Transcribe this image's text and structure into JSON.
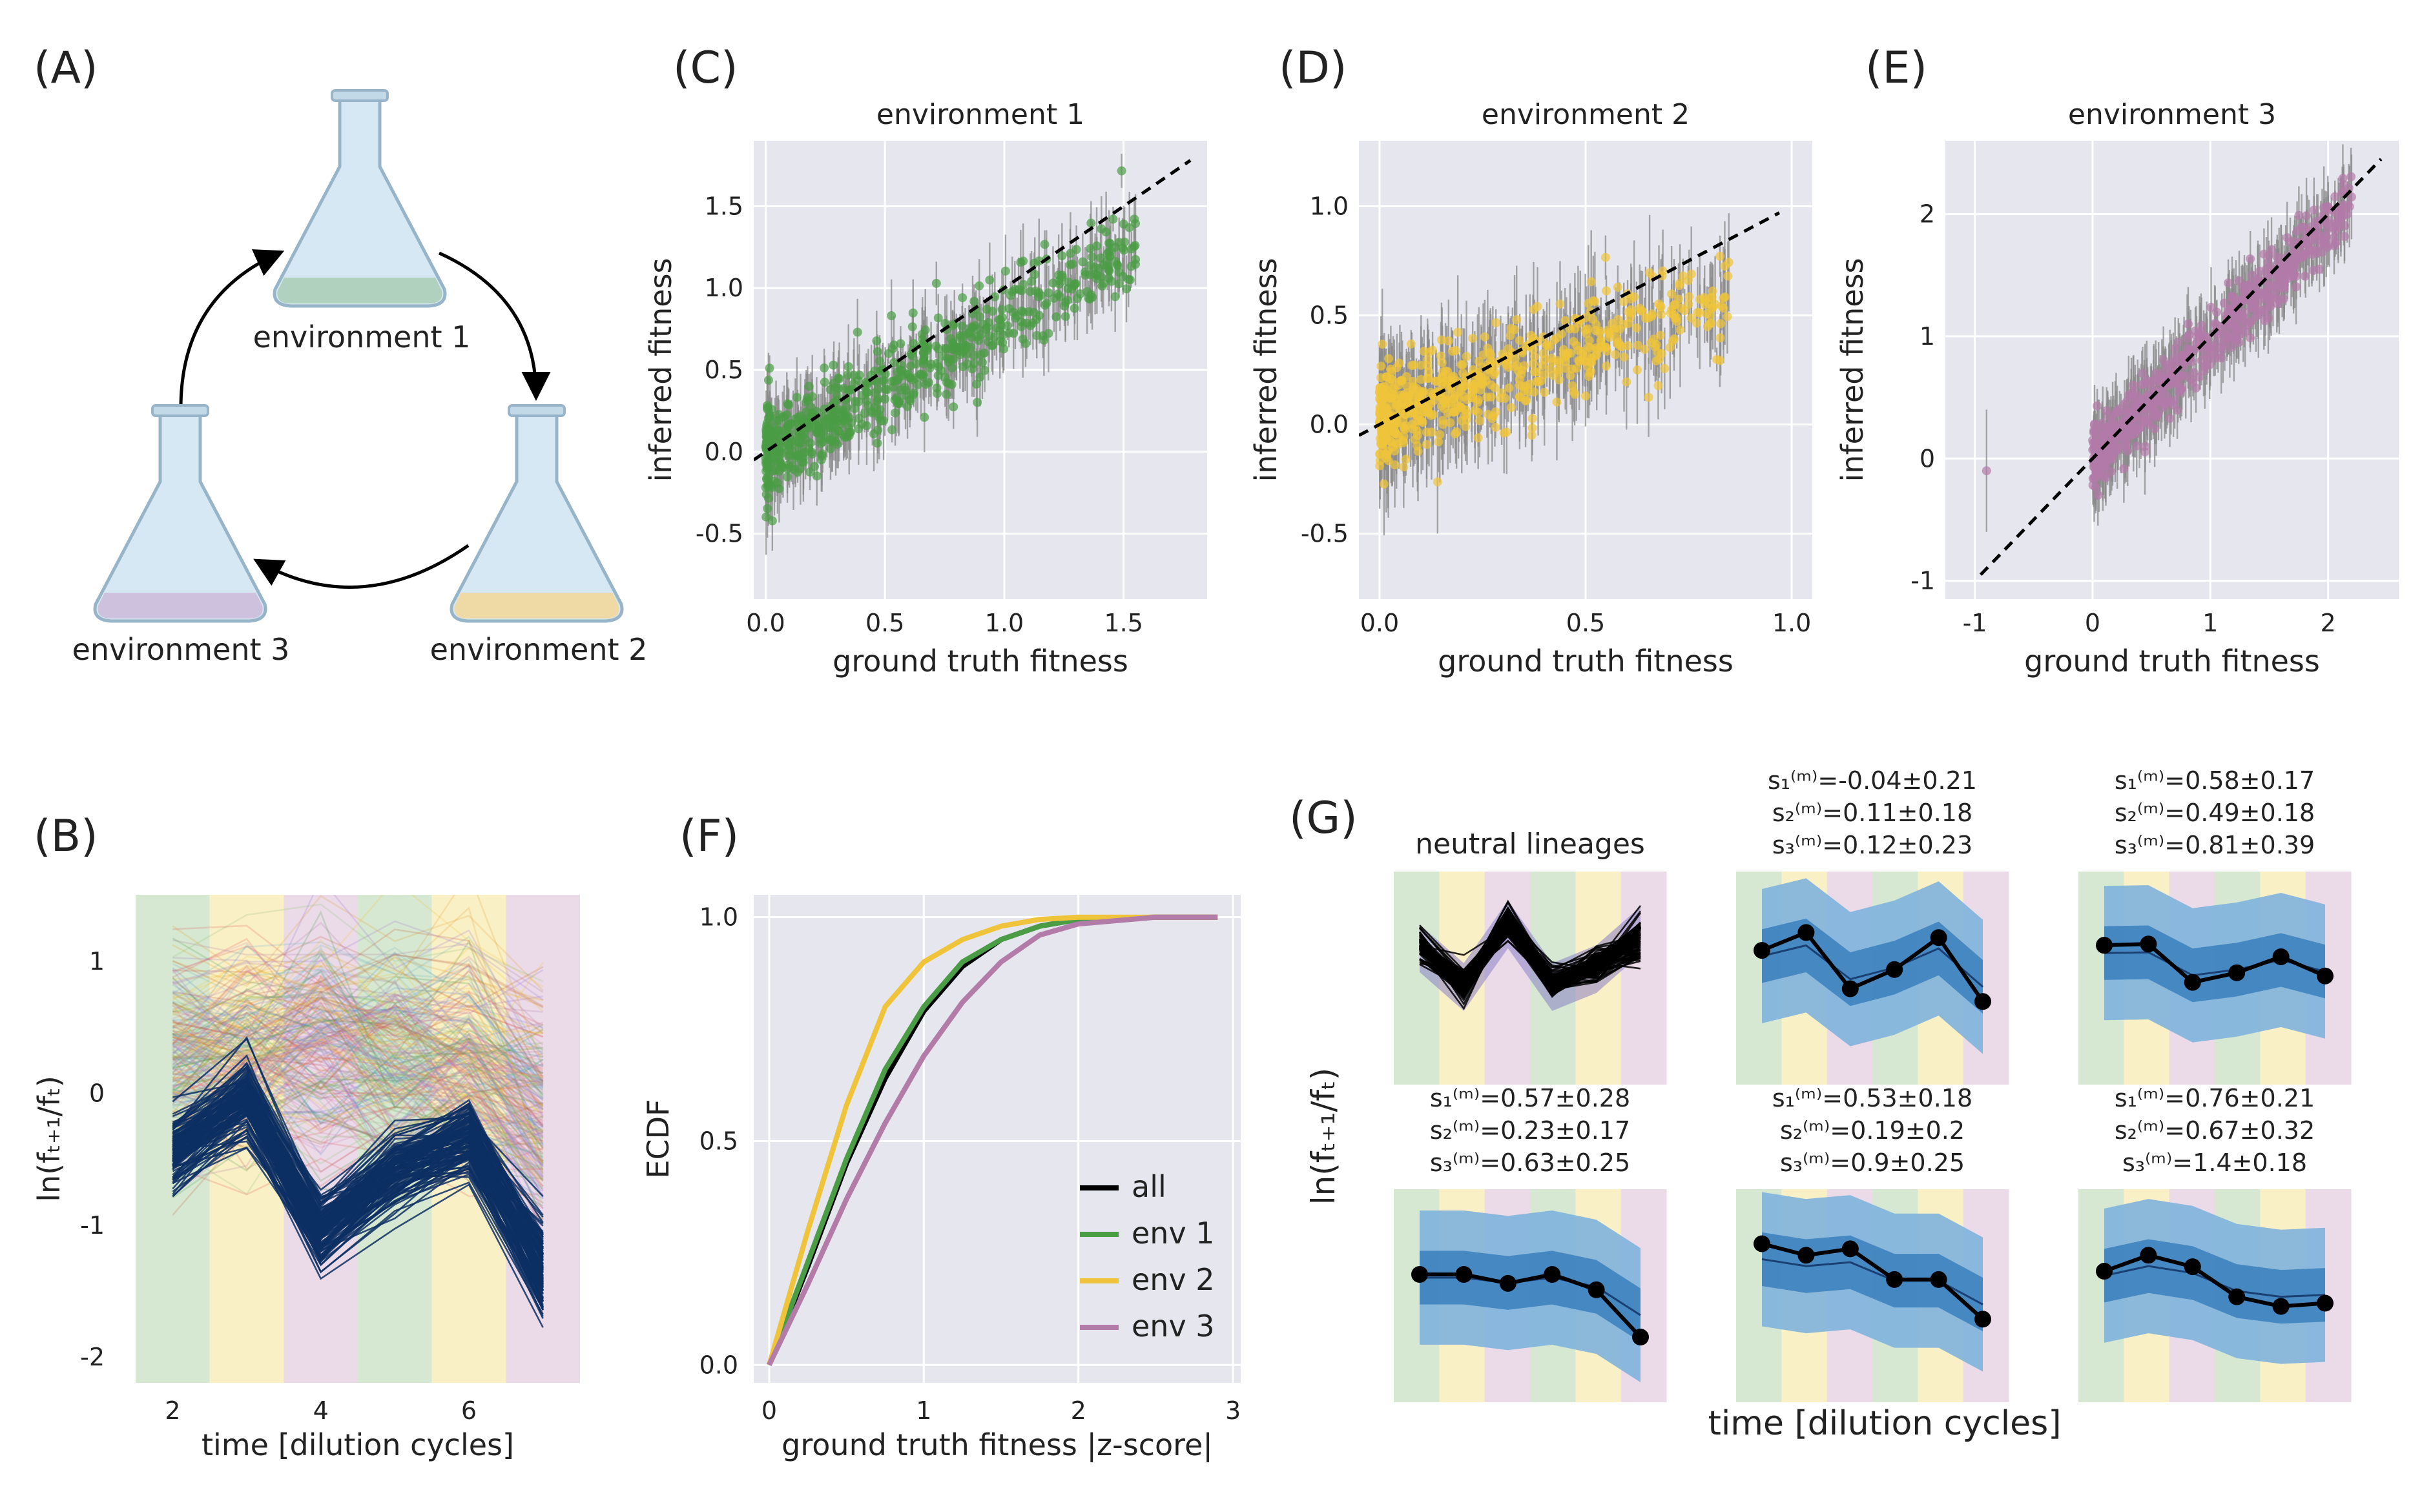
{
  "panel_labels": [
    "(A)",
    "(B)",
    "(C)",
    "(D)",
    "(E)",
    "(F)",
    "(G)"
  ],
  "colors": {
    "env1": "#4a9d45",
    "env2": "#f0c43a",
    "env3": "#b27ba8",
    "env1_bg": "#d6e8d1",
    "env2_bg": "#faf0c6",
    "env3_bg": "#ebdbe8",
    "neutral": "#0d2f63",
    "axes_bg": "#e6e6ef",
    "errorbar": "#8a8a8a",
    "band_light": "#7fb2dc",
    "band_dark": "#2f78b8",
    "all": "#000000"
  },
  "panel_a": {
    "labels": [
      "environment 1",
      "environment 2",
      "environment 3"
    ],
    "liquid_colors": [
      "#a9cdb3",
      "#f2d89c",
      "#cdbddb"
    ]
  },
  "chart_data": [
    {
      "panel": "B",
      "type": "line",
      "xlabel": "time [dilution cycles]",
      "ylabel": "ln(fₜ₊₁/fₜ)",
      "x_ticks": [
        2,
        4,
        6
      ],
      "y_ticks": [
        1,
        0,
        -1,
        -2
      ],
      "y_tick_labels": [
        "1",
        "0",
        "-1",
        "-2"
      ],
      "xlim": [
        1.5,
        7.5
      ],
      "ylim": [
        -2.2,
        1.5
      ],
      "env_bands": [
        "env1",
        "env2",
        "env3",
        "env1",
        "env2",
        "env3"
      ],
      "neutral_mean": {
        "x": [
          2,
          3,
          4,
          5,
          6,
          7
        ],
        "y": [
          -0.45,
          -0.05,
          -1.05,
          -0.6,
          -0.35,
          -1.1
        ]
      }
    },
    {
      "panel": "C",
      "type": "scatter",
      "title": "environment 1",
      "xlabel": "ground truth fitness",
      "ylabel": "inferred fitness",
      "x_ticks": [
        0.0,
        0.5,
        1.0,
        1.5
      ],
      "x_tick_labels": [
        "0.0",
        "0.5",
        "1.0",
        "1.5"
      ],
      "y_ticks": [
        1.5,
        1.0,
        0.5,
        0.0,
        -0.5
      ],
      "y_tick_labels": [
        "1.5",
        "1.0",
        "0.5",
        "0.0",
        "-0.5"
      ],
      "xlim": [
        -0.05,
        1.85
      ],
      "ylim": [
        -0.9,
        1.9
      ],
      "identity_line": [
        -0.05,
        1.78
      ],
      "series_color": "env1"
    },
    {
      "panel": "D",
      "type": "scatter",
      "title": "environment 2",
      "xlabel": "ground truth fitness",
      "ylabel": "inferred fitness",
      "x_ticks": [
        0.0,
        0.5,
        1.0
      ],
      "x_tick_labels": [
        "0.0",
        "0.5",
        "1.0"
      ],
      "y_ticks": [
        1.0,
        0.5,
        0.0,
        -0.5
      ],
      "y_tick_labels": [
        "1.0",
        "0.5",
        "0.0",
        "-0.5"
      ],
      "xlim": [
        -0.05,
        1.05
      ],
      "ylim": [
        -0.8,
        1.3
      ],
      "identity_line": [
        -0.05,
        0.97
      ],
      "series_color": "env2"
    },
    {
      "panel": "E",
      "type": "scatter",
      "title": "environment 3",
      "xlabel": "ground truth fitness",
      "ylabel": "inferred fitness",
      "x_ticks": [
        -1,
        0,
        1,
        2
      ],
      "x_tick_labels": [
        "-1",
        "0",
        "1",
        "2"
      ],
      "y_ticks": [
        2,
        1,
        0,
        -1
      ],
      "y_tick_labels": [
        "2",
        "1",
        "0",
        "-1"
      ],
      "xlim": [
        -1.25,
        2.6
      ],
      "ylim": [
        -1.15,
        2.6
      ],
      "identity_line": [
        -0.95,
        2.45
      ],
      "series_color": "env3"
    },
    {
      "panel": "F",
      "type": "line",
      "xlabel": "ground truth fitness |z-score|",
      "ylabel": "ECDF",
      "x_ticks": [
        0,
        1,
        2,
        3
      ],
      "y_ticks": [
        1.0,
        0.5,
        0.0
      ],
      "y_tick_labels": [
        "1.0",
        "0.5",
        "0.0"
      ],
      "xlim": [
        -0.1,
        3.05
      ],
      "ylim": [
        -0.04,
        1.05
      ],
      "legend_position": "bottom-right",
      "series": [
        {
          "name": "all",
          "color": "all",
          "x": [
            0,
            0.25,
            0.5,
            0.75,
            1.0,
            1.25,
            1.5,
            1.75,
            2.0,
            2.5,
            2.9
          ],
          "y": [
            0,
            0.22,
            0.45,
            0.64,
            0.79,
            0.89,
            0.95,
            0.98,
            0.995,
            1.0,
            1.0
          ]
        },
        {
          "name": "env 1",
          "color": "env1",
          "x": [
            0,
            0.25,
            0.5,
            0.75,
            1.0,
            1.25,
            1.5,
            1.75,
            2.0,
            2.5,
            2.9
          ],
          "y": [
            0,
            0.23,
            0.46,
            0.66,
            0.8,
            0.9,
            0.95,
            0.98,
            0.995,
            1.0,
            1.0
          ]
        },
        {
          "name": "env 2",
          "color": "env2",
          "x": [
            0,
            0.25,
            0.5,
            0.75,
            1.0,
            1.25,
            1.5,
            1.75,
            2.0,
            2.5,
            2.9
          ],
          "y": [
            0,
            0.3,
            0.58,
            0.8,
            0.9,
            0.95,
            0.98,
            0.995,
            1.0,
            1.0,
            1.0
          ]
        },
        {
          "name": "env 3",
          "color": "env3",
          "x": [
            0,
            0.25,
            0.5,
            0.75,
            1.0,
            1.25,
            1.5,
            1.75,
            2.0,
            2.5,
            2.9
          ],
          "y": [
            0,
            0.18,
            0.37,
            0.54,
            0.69,
            0.81,
            0.9,
            0.96,
            0.985,
            1.0,
            1.0
          ]
        }
      ]
    },
    {
      "panel": "G",
      "type": "line",
      "ylabel": "ln(fₜ₊₁/fₜ)",
      "xlabel": "time [dilution cycles]",
      "neutral_title": "neutral lineages",
      "neutral_curve": [
        0.55,
        -0.1,
        0.95,
        -0.1,
        0.2,
        0.85,
        -0.4
      ],
      "env_bands": [
        "env1",
        "env2",
        "env3",
        "env1",
        "env2",
        "env3"
      ],
      "subplots": [
        {
          "label": [
            "s₁⁽ᵐ⁾=-0.04±0.21",
            "s₂⁽ᵐ⁾=0.11±0.18",
            "s₃⁽ᵐ⁾=0.12±0.23"
          ],
          "y": [
            0.6,
            0.88,
            0.0,
            0.3,
            0.8,
            -0.2
          ]
        },
        {
          "label": [
            "s₁⁽ᵐ⁾=0.58±0.17",
            "s₂⁽ᵐ⁾=0.49±0.18",
            "s₃⁽ᵐ⁾=0.81±0.39"
          ],
          "y": [
            0.68,
            0.7,
            0.1,
            0.25,
            0.5,
            0.2
          ]
        },
        {
          "label": [
            "s₁⁽ᵐ⁾=0.57±0.28",
            "s₂⁽ᵐ⁾=0.23±0.17",
            "s₃⁽ᵐ⁾=0.63±0.25"
          ],
          "y": [
            0.5,
            0.5,
            0.36,
            0.5,
            0.26,
            -0.48
          ]
        },
        {
          "label": [
            "s₁⁽ᵐ⁾=0.53±0.18",
            "s₂⁽ᵐ⁾=0.19±0.2",
            "s₃⁽ᵐ⁾=0.9±0.25"
          ],
          "y": [
            0.98,
            0.8,
            0.9,
            0.42,
            0.42,
            -0.2
          ]
        },
        {
          "label": [
            "s₁⁽ᵐ⁾=0.76±0.21",
            "s₂⁽ᵐ⁾=0.67±0.32",
            "s₃⁽ᵐ⁾=1.4±0.18"
          ],
          "y": [
            0.55,
            0.8,
            0.62,
            0.15,
            0.0,
            0.05
          ]
        }
      ]
    }
  ]
}
